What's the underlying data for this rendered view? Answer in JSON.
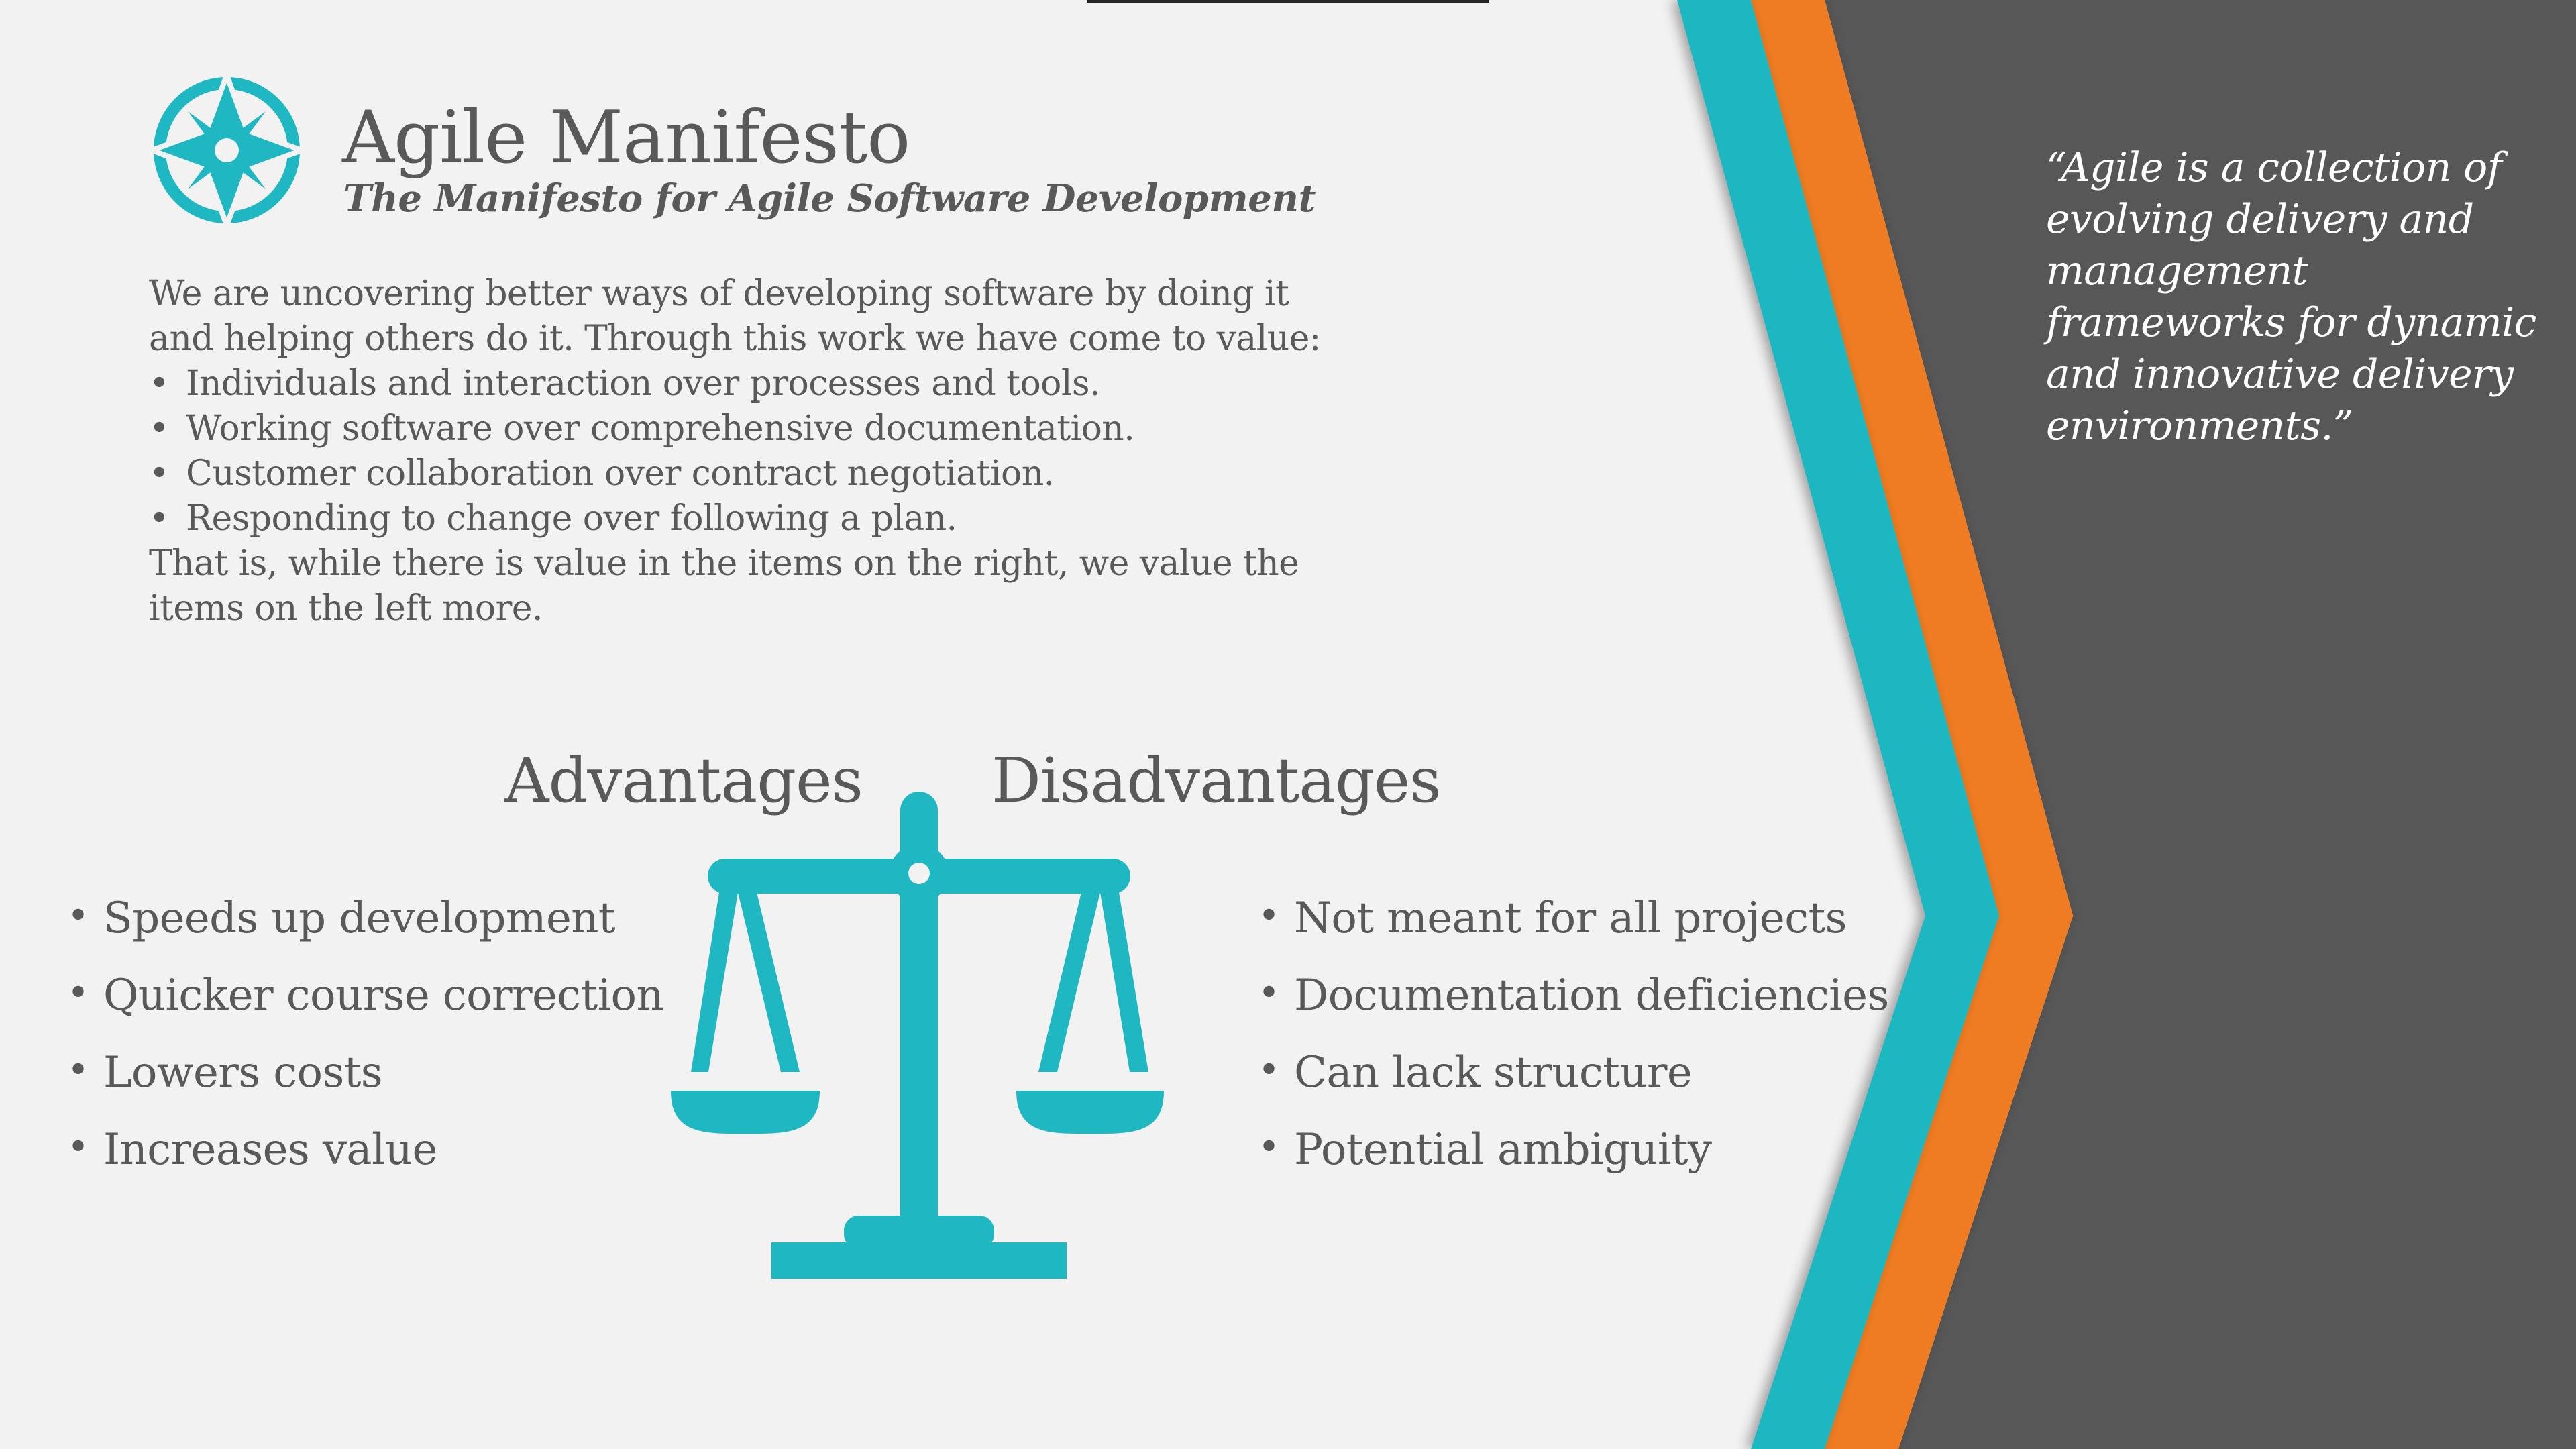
{
  "slide": {
    "title": "Agile Manifesto",
    "subtitle": "The Manifesto for Agile Software Development",
    "logo_icon": "compass-icon",
    "scale_icon": "balance-scale-icon"
  },
  "manifesto": {
    "intro": "We are uncovering better ways of developing software by doing it and helping others do it.  Through this work we have come to value:",
    "values": [
      "Individuals and interaction over processes and tools.",
      "Working software over comprehensive documentation.",
      "Customer collaboration over contract negotiation.",
      "Responding to change over following a plan."
    ],
    "closing": "That is, while there is value in the items on the right, we value the items on the left more."
  },
  "advantages": {
    "heading": "Advantages",
    "items": [
      "Speeds up development",
      "Quicker course correction",
      "Lowers costs",
      "Increases value"
    ]
  },
  "disadvantages": {
    "heading": "Disadvantages",
    "items": [
      "Not meant for all projects",
      "Documentation deficiencies",
      "Can lack structure",
      "Potential ambiguity"
    ]
  },
  "quote": {
    "text": "“Agile is a collection of evolving delivery and management frameworks for dynamic and innovative delivery environments.”"
  },
  "colors": {
    "accent_teal": "#1fb7c1",
    "accent_orange": "#ef7b22",
    "panel_dark": "#575757",
    "background": "#f2f2f2",
    "text": "#595959"
  }
}
